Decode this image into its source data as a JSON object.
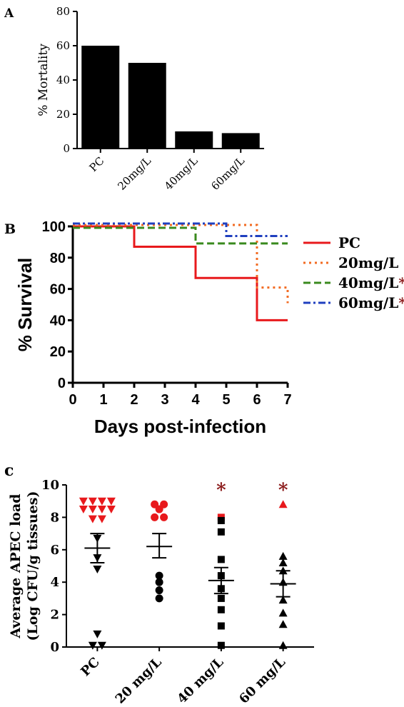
{
  "chart_data": [
    {
      "panel": "A",
      "type": "bar",
      "ylabel": "% Mortality",
      "xlabel": "",
      "ylim": [
        0,
        80
      ],
      "yticks": [
        "0",
        "20",
        "40",
        "60",
        "80"
      ],
      "categories": [
        "PC",
        "20mg/L",
        "40mg/L",
        "60mg/L"
      ],
      "values": [
        60,
        50,
        10,
        9
      ],
      "bar_color": "#000000"
    },
    {
      "panel": "B",
      "type": "line",
      "ylabel": "% Survival",
      "xlabel": "Days post-infection",
      "xlim": [
        0,
        7
      ],
      "ylim": [
        0,
        100
      ],
      "xticks": [
        "0",
        "1",
        "2",
        "3",
        "4",
        "5",
        "6",
        "7"
      ],
      "yticks": [
        "0",
        "20",
        "40",
        "60",
        "80",
        "100"
      ],
      "legend_position": "right",
      "series": [
        {
          "name": "PC",
          "color": "#e8191c",
          "dash": "solid",
          "marker": "",
          "steps": [
            [
              0,
              100
            ],
            [
              2,
              87
            ],
            [
              4,
              67
            ],
            [
              6,
              40
            ],
            [
              7,
              40
            ]
          ]
        },
        {
          "name": "20mg/L",
          "color": "#f26b22",
          "dash": "dotted",
          "marker": "",
          "steps": [
            [
              0,
              100
            ],
            [
              6,
              60
            ],
            [
              7,
              50
            ]
          ]
        },
        {
          "name": "40mg/L",
          "color": "#3a8a1e",
          "dash": "dashed",
          "marker": "*",
          "steps": [
            [
              0,
              100
            ],
            [
              4,
              90
            ],
            [
              7,
              90
            ]
          ]
        },
        {
          "name": "60mg/L",
          "color": "#1f3fbf",
          "dash": "dashdot",
          "marker": "*",
          "steps": [
            [
              0,
              100
            ],
            [
              5,
              92
            ],
            [
              7,
              92
            ]
          ]
        }
      ]
    },
    {
      "panel": "c",
      "type": "scatter",
      "ylabel": "Average APEC load",
      "ylabel2": "(Log CFU/g tissues)",
      "xlabel": "",
      "ylim": [
        0,
        10
      ],
      "yticks": [
        "0",
        "2",
        "4",
        "6",
        "8",
        "10"
      ],
      "categories": [
        "PC",
        "20 mg/L",
        "40 mg/L",
        "60 mg/L"
      ],
      "groups": [
        {
          "name": "PC",
          "shape": "triangle-down",
          "mean": 6.1,
          "sem_low": 5.2,
          "sem_high": 7.0,
          "points": [
            [
              9.0,
              "#e8191c"
            ],
            [
              9.0,
              "#e8191c"
            ],
            [
              9.0,
              "#e8191c"
            ],
            [
              9.0,
              "#e8191c"
            ],
            [
              8.5,
              "#e8191c"
            ],
            [
              8.5,
              "#e8191c"
            ],
            [
              8.5,
              "#e8191c"
            ],
            [
              8.5,
              "#e8191c"
            ],
            [
              7.9,
              "#e8191c"
            ],
            [
              7.9,
              "#e8191c"
            ],
            [
              6.7,
              "#000000"
            ],
            [
              5.5,
              "#000000"
            ],
            [
              4.8,
              "#000000"
            ],
            [
              0.8,
              "#000000"
            ],
            [
              0.1,
              "#000000"
            ],
            [
              0.1,
              "#000000"
            ]
          ]
        },
        {
          "name": "20 mg/L",
          "shape": "circle",
          "mean": 6.2,
          "sem_low": 5.5,
          "sem_high": 7.0,
          "points": [
            [
              8.8,
              "#e8191c"
            ],
            [
              8.8,
              "#e8191c"
            ],
            [
              8.5,
              "#e8191c"
            ],
            [
              8.0,
              "#e8191c"
            ],
            [
              8.0,
              "#e8191c"
            ],
            [
              4.4,
              "#000000"
            ],
            [
              4.0,
              "#000000"
            ],
            [
              3.5,
              "#000000"
            ],
            [
              3.0,
              "#000000"
            ]
          ]
        },
        {
          "name": "40 mg/L",
          "shape": "square",
          "mean": 4.1,
          "sem_low": 3.3,
          "sem_high": 4.9,
          "annotation": "*",
          "points": [
            [
              8.0,
              "#e8191c"
            ],
            [
              7.8,
              "#000000"
            ],
            [
              7.1,
              "#000000"
            ],
            [
              5.4,
              "#000000"
            ],
            [
              4.4,
              "#000000"
            ],
            [
              3.6,
              "#000000"
            ],
            [
              3.0,
              "#000000"
            ],
            [
              2.3,
              "#000000"
            ],
            [
              1.3,
              "#000000"
            ],
            [
              0.1,
              "#000000"
            ]
          ]
        },
        {
          "name": "60 mg/L",
          "shape": "triangle-up",
          "mean": 3.9,
          "sem_low": 3.1,
          "sem_high": 4.7,
          "annotation": "*",
          "points": [
            [
              8.8,
              "#e8191c"
            ],
            [
              5.6,
              "#000000"
            ],
            [
              5.2,
              "#000000"
            ],
            [
              4.7,
              "#000000"
            ],
            [
              4.0,
              "#000000"
            ],
            [
              2.9,
              "#000000"
            ],
            [
              2.1,
              "#000000"
            ],
            [
              1.4,
              "#000000"
            ],
            [
              0.1,
              "#000000"
            ]
          ]
        }
      ]
    }
  ],
  "panels": {
    "a": "A",
    "b": "B",
    "c": "c"
  },
  "annotation_color": "#8b1a1a"
}
